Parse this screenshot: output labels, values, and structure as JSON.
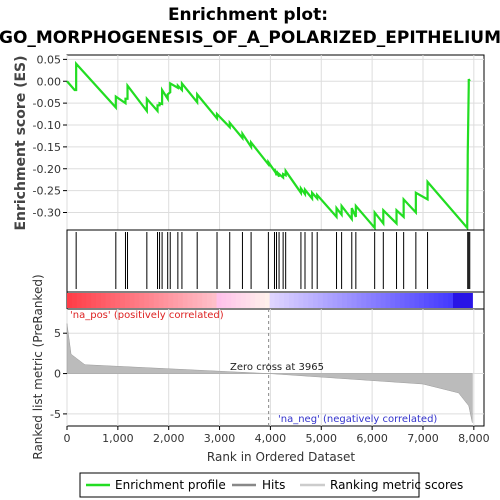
{
  "chart_data": {
    "type": "line",
    "title_line1": "Enrichment plot:",
    "title_line2": "GO_MORPHOGENESIS_OF_A_POLARIZED_EPITHELIUM",
    "ylabel": "Enrichment score (ES)",
    "xlabel": "Rank in Ordered Dataset",
    "ylabel_metric": "Ranked list metric (PreRanked)",
    "xlim": [
      0,
      8200
    ],
    "ylim": [
      -0.34,
      0.06
    ],
    "x_ticks": [
      0,
      1000,
      2000,
      3000,
      4000,
      5000,
      6000,
      7000,
      8000
    ],
    "x_tick_labels": [
      "0",
      "1,000",
      "2,000",
      "3,000",
      "4,000",
      "5,000",
      "6,000",
      "7,000",
      "8,000"
    ],
    "y_ticks": [
      0.05,
      0.0,
      -0.05,
      -0.1,
      -0.15,
      -0.2,
      -0.25,
      -0.3
    ],
    "y_tick_labels": [
      "0.05",
      "0.00",
      "-0.05",
      "-0.10",
      "-0.15",
      "-0.20",
      "-0.25",
      "-0.30"
    ],
    "metric_ylim": [
      -6.5,
      8.0
    ],
    "metric_ticks": [
      5,
      0,
      -5
    ],
    "metric_tick_labels": [
      "5",
      "0",
      "-5"
    ],
    "n_genes": 7970,
    "zero_cross": 3965,
    "zero_cross_label": "Zero cross at 3965",
    "pos_label": "'na_pos' (positively correlated)",
    "neg_label": "'na_neg' (negatively correlated)",
    "hits": [
      180,
      960,
      1150,
      1190,
      1570,
      1780,
      1820,
      1870,
      1980,
      2030,
      2180,
      2260,
      2560,
      2950,
      3200,
      3450,
      3620,
      3960,
      4080,
      4120,
      4170,
      4250,
      4300,
      4600,
      4680,
      4820,
      4920,
      5300,
      5400,
      5600,
      5680,
      6050,
      6220,
      6480,
      6620,
      6860,
      7090,
      7880,
      7900,
      7920
    ],
    "es_x": [
      0,
      150,
      180,
      960,
      1150,
      1190,
      1570,
      1780,
      1820,
      1870,
      1980,
      2030,
      2180,
      2260,
      2560,
      2950,
      3200,
      3450,
      3620,
      3960,
      4080,
      4120,
      4170,
      4250,
      4300,
      4600,
      4680,
      4820,
      4920,
      5300,
      5400,
      5600,
      5680,
      6050,
      6220,
      6480,
      6620,
      6860,
      7090,
      7870,
      7880,
      7900,
      7920
    ],
    "es_before": [
      0.0,
      -0.02,
      -0.02,
      -0.06,
      -0.05,
      -0.04,
      -0.068,
      -0.068,
      -0.055,
      -0.052,
      -0.04,
      -0.025,
      -0.015,
      -0.02,
      -0.048,
      -0.085,
      -0.105,
      -0.13,
      -0.15,
      -0.19,
      -0.205,
      -0.215,
      -0.218,
      -0.22,
      -0.215,
      -0.255,
      -0.258,
      -0.268,
      -0.268,
      -0.31,
      -0.305,
      -0.315,
      -0.31,
      -0.335,
      -0.325,
      -0.325,
      -0.31,
      -0.3,
      -0.27,
      -0.335,
      -0.18,
      -0.01,
      0.0
    ],
    "es_after": [
      0.0,
      -0.02,
      0.04,
      -0.035,
      -0.04,
      -0.01,
      -0.04,
      -0.055,
      -0.05,
      -0.02,
      -0.03,
      -0.005,
      -0.01,
      -0.005,
      -0.03,
      -0.075,
      -0.095,
      -0.12,
      -0.14,
      -0.185,
      -0.2,
      -0.205,
      -0.212,
      -0.212,
      -0.205,
      -0.245,
      -0.248,
      -0.255,
      -0.26,
      -0.29,
      -0.285,
      -0.29,
      -0.285,
      -0.3,
      -0.295,
      -0.295,
      -0.27,
      -0.255,
      -0.23,
      -0.335,
      -0.17,
      0.005,
      0.0
    ],
    "legend": [
      "Enrichment profile",
      "Hits",
      "Ranking metric scores"
    ],
    "colors": {
      "es_line": "#22dd22",
      "hit": "#000000",
      "metric": "#bbbbbb",
      "zero_line": "#888888",
      "pos_text": "#dd2222",
      "neg_text": "#3333cc"
    }
  }
}
